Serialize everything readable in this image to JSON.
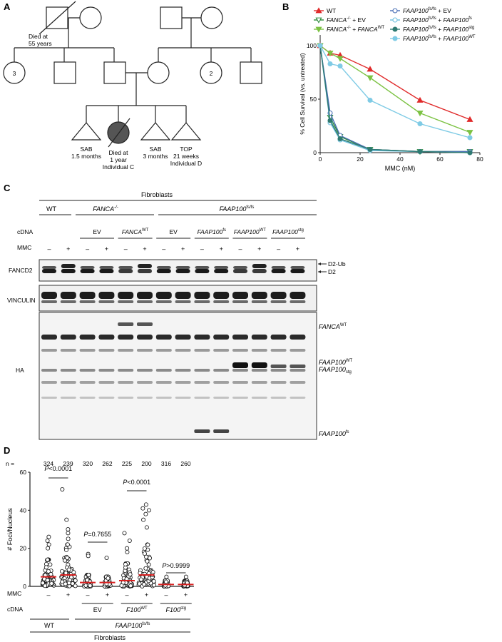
{
  "panels": {
    "a": "A",
    "b": "B",
    "c": "C",
    "d": "D"
  },
  "pedigree": {
    "grandfather_left_note": [
      "Died at",
      "55 years"
    ],
    "sib_count_left": "3",
    "sib_count_right": "2",
    "children": [
      {
        "lines": [
          "SAB",
          "1.5 months"
        ]
      },
      {
        "lines": [
          "Died at",
          "1 year",
          "Individual C"
        ]
      },
      {
        "lines": [
          "SAB",
          "3 months"
        ]
      },
      {
        "lines": [
          "TOP",
          "21 weeks",
          "Individual D"
        ]
      }
    ]
  },
  "chart_data": [
    {
      "type": "line",
      "xlabel": "MMC (nM)",
      "ylabel": "% Cell Survival (vs. untreated)",
      "xlim": [
        0,
        80
      ],
      "ylim": [
        0,
        110
      ],
      "xticks": [
        "0",
        "20",
        "40",
        "60",
        "80"
      ],
      "yticks": [
        "0",
        "50",
        "100"
      ],
      "x": [
        0,
        5,
        10,
        25,
        50,
        75
      ],
      "series": [
        {
          "name": "WT",
          "color": "#e02b2b",
          "marker": "triangle-up-filled",
          "values": [
            100,
            93,
            91,
            78,
            49,
            31
          ]
        },
        {
          "name": "FANCA-/- + EV",
          "color": "#2a8a3a",
          "marker": "triangle-down-open",
          "values": [
            100,
            33,
            15,
            3,
            1,
            1
          ]
        },
        {
          "name": "FANCA-/- + FANCAWT",
          "color": "#7cc243",
          "marker": "triangle-down-filled",
          "values": [
            100,
            93,
            88,
            70,
            37,
            19
          ]
        },
        {
          "name": "FAAP100fs/fs + EV",
          "color": "#4a6fb5",
          "marker": "circle-open",
          "values": [
            100,
            37,
            16,
            3,
            1,
            1
          ]
        },
        {
          "name": "FAAP100fs/fs + FAAP100fs",
          "color": "#6ec0df",
          "marker": "circle-open",
          "values": [
            100,
            28,
            12,
            2,
            1,
            0
          ]
        },
        {
          "name": "FAAP100fs/fs + FAAP100stg",
          "color": "#2f7a72",
          "marker": "circle-filled",
          "values": [
            100,
            30,
            13,
            3,
            1,
            0
          ]
        },
        {
          "name": "FAAP100fs/fs + FAAP100WT",
          "color": "#7fcbe5",
          "marker": "circle-filled",
          "values": [
            100,
            83,
            81,
            49,
            27,
            14
          ]
        }
      ]
    },
    {
      "type": "scatter",
      "ylabel": "# Foci/Nucleus",
      "ylim": [
        0,
        60
      ],
      "yticks": [
        "0",
        "20",
        "40",
        "60"
      ],
      "categories": [
        "WT −",
        "WT +",
        "EV −",
        "EV +",
        "F100WT −",
        "F100WT +",
        "F100stg −",
        "F100stg +"
      ],
      "n": [
        "324",
        "239",
        "320",
        "262",
        "225",
        "200",
        "316",
        "260"
      ],
      "means": [
        5,
        6,
        2,
        2,
        3,
        6,
        1,
        1
      ],
      "p_values": [
        "P<0.0001",
        "P=0.7655",
        "P<0.0001",
        "P>0.9999"
      ]
    }
  ],
  "legend_b": [
    {
      "main": "WT",
      "sup": "",
      "mid": "",
      "sup2": "",
      "color": "#e02b2b"
    },
    {
      "main": "FANCA",
      "sup": "-/-",
      "mid": " + EV",
      "sup2": "",
      "color": "#2a8a3a"
    },
    {
      "main": "FANCA",
      "sup": "-/-",
      "mid": " + FANCA",
      "sup2": "WT",
      "color": "#7cc243"
    },
    {
      "main": "FAAP100",
      "sup": "fs/fs",
      "mid": " + EV",
      "sup2": "",
      "color": "#4a6fb5"
    },
    {
      "main": "FAAP100",
      "sup": "fs/fs",
      "mid": " + FAAP100",
      "sup2": "fs",
      "color": "#6ec0df"
    },
    {
      "main": "FAAP100",
      "sup": "fs/fs",
      "mid": " + FAAP100",
      "sup2": "stg",
      "color": "#2f7a72"
    },
    {
      "main": "FAAP100",
      "sup": "fs/fs",
      "mid": " + FAAP100",
      "sup2": "WT",
      "color": "#7fcbe5"
    }
  ],
  "blot": {
    "fibroblasts": "Fibroblasts",
    "group_wt": "WT",
    "group_fanca": "FANCA",
    "group_fanca_sup": "-/-",
    "group_faap": "FAAP100",
    "group_faap_sup": "fs/fs",
    "cdna_label": "cDNA",
    "mmc_label": "MMC",
    "cdna": [
      {
        "text": "EV",
        "sup": ""
      },
      {
        "text": "FANCA",
        "sup": "WT"
      },
      {
        "text": "EV",
        "sup": ""
      },
      {
        "text": "FAAP100",
        "sup": "fs"
      },
      {
        "text": "FAAP100",
        "sup": "WT"
      },
      {
        "text": "FAAP100",
        "sup": "stg"
      }
    ],
    "mmc_signs": [
      "–",
      "+",
      "–",
      "+",
      "–",
      "+",
      "–",
      "+",
      "–",
      "+",
      "–",
      "+",
      "–",
      "+"
    ],
    "row_fancd2": "FANCD2",
    "row_vinculin": "VINCULIN",
    "row_ha": "HA",
    "d2ub": "D2-Ub",
    "d2": "D2",
    "ha_bands": [
      {
        "text": "FANCA",
        "sup": "WT"
      },
      {
        "text": "FAAP100",
        "sup": "WT"
      },
      {
        "text": "FAAP100",
        "sub": "stg"
      },
      {
        "text": "FAAP100",
        "sup": "fs"
      }
    ]
  },
  "panel_d": {
    "n_label": "n =",
    "mmc_label": "MMC",
    "cdna_label": "cDNA",
    "mmc_signs": [
      "–",
      "+",
      "–",
      "+",
      "–",
      "+",
      "–",
      "+"
    ],
    "cdna": [
      {
        "text": "EV",
        "sup": ""
      },
      {
        "text": "F100",
        "sup": "WT"
      },
      {
        "text": "F100",
        "sup": "stg"
      }
    ],
    "wt": "WT",
    "faap": "FAAP100",
    "faap_sup": "fs/fs",
    "fibroblasts": "Fibroblasts"
  }
}
